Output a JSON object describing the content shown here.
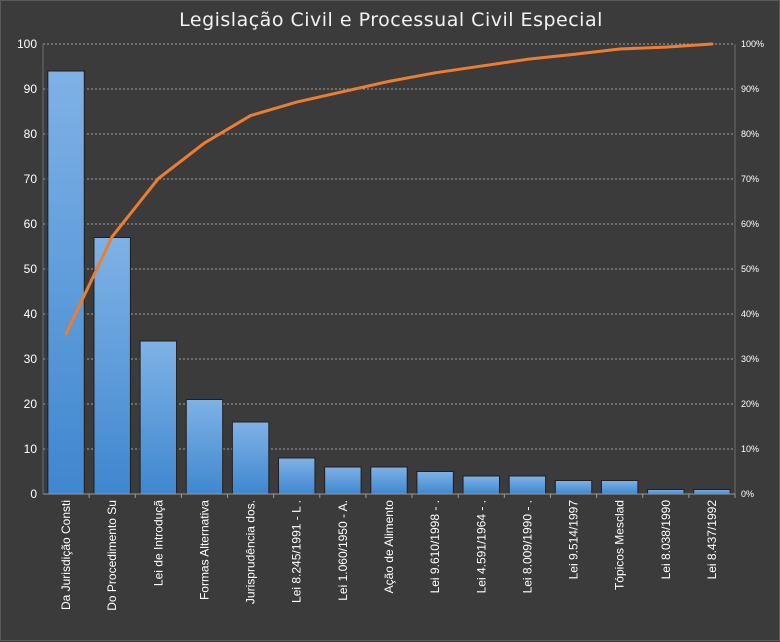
{
  "chart_data": {
    "type": "bar",
    "title": "Legislação  Civil e Processual  Civil Especial",
    "xlabel": "",
    "ylabel": "",
    "ylim": [
      0,
      100
    ],
    "y_ticks": [
      "0",
      "10",
      "20",
      "30",
      "40",
      "50",
      "60",
      "70",
      "80",
      "90",
      "100"
    ],
    "y2lim": [
      0,
      100
    ],
    "y2_ticks": [
      "0%",
      "10%",
      "20%",
      "30%",
      "40%",
      "50%",
      "60%",
      "70%",
      "80%",
      "90%",
      "100%"
    ],
    "grid": true,
    "categories": [
      "Da Jurisdição Consti",
      "Do Procedimento Su",
      "Lei de Introduçã",
      "Formas Alternativa",
      "Jurisprudência dos.",
      "Lei 8.245/1991 - L .",
      "Lei 1.060/1950 - A.",
      "Ação de Alimento",
      "Lei 9.610/1998 - .",
      "Lei 4.591/1964 - .",
      "Lei 8.009/1990 - .",
      "Lei 9.514/1997",
      "Tópicos Mesclad",
      "Lei 8.038/1990",
      "Lei 8.437/1992"
    ],
    "series": [
      {
        "type": "bar",
        "values": [
          94,
          57,
          34,
          21,
          16,
          8,
          6,
          6,
          5,
          4,
          4,
          3,
          3,
          1,
          1
        ]
      },
      {
        "type": "line",
        "axis": "right",
        "values": [
          35.6,
          57.2,
          70.1,
          78.0,
          84.1,
          87.1,
          89.4,
          91.7,
          93.6,
          95.1,
          96.6,
          97.7,
          98.9,
          99.3,
          100
        ]
      }
    ],
    "colors": {
      "bar_top": "#7fb2e6",
      "bar_bottom": "#3f87cf",
      "line": "#ed7d31",
      "background": "#3b3b3b",
      "grid": "#a0a0a0"
    }
  }
}
